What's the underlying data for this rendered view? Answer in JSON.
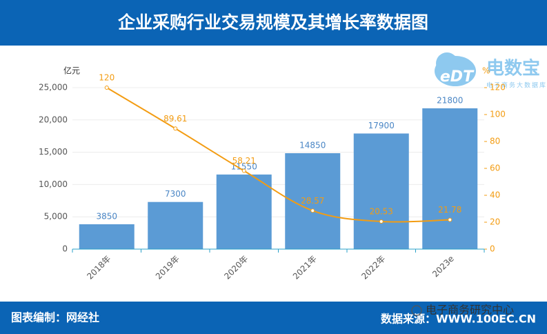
{
  "header": {
    "title": "企业采购行业交易规模及其增长率数据图"
  },
  "logo": {
    "icon_text": "eDT",
    "name": "电数宝",
    "tagline": "电子商务大数据库"
  },
  "chart_data": {
    "type": "bar",
    "ylabel": "亿元",
    "y2label": "%",
    "categories": [
      "2018年",
      "2019年",
      "2020年",
      "2021年",
      "2022年",
      "2023e"
    ],
    "series": [
      {
        "type": "bar",
        "color": "#5b9bd5",
        "values": [
          3850,
          7300,
          11550,
          14850,
          17900,
          21800
        ]
      },
      {
        "type": "line",
        "axis": "y2",
        "color": "#f39c12",
        "values": [
          120,
          89.61,
          58.21,
          28.57,
          20.53,
          21.78
        ]
      }
    ],
    "ylim": [
      0,
      25000
    ],
    "yticks": [
      0,
      {
        "value": 5000,
        "label": "5,000"
      },
      {
        "value": 10000,
        "label": "10,000"
      },
      {
        "value": 15000,
        "label": "15,000"
      },
      {
        "value": 20000,
        "label": "20,000"
      },
      {
        "value": 25000,
        "label": "25,000"
      }
    ],
    "y2lim": [
      0,
      120
    ],
    "y2ticks": [
      0,
      20,
      40,
      60,
      80,
      100,
      120
    ],
    "grid": true
  },
  "footer": {
    "left": "图表编制：网经社",
    "right": "数据来源：WWW.100EC.CN"
  },
  "watermark": "电子商务研究中心"
}
